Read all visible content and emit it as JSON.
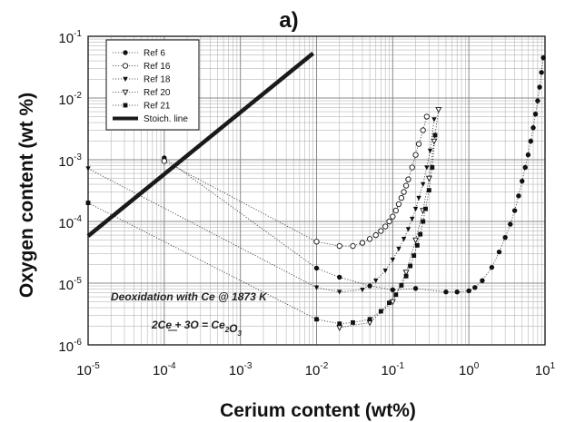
{
  "chart_data": {
    "type": "scatter",
    "title": "a)",
    "xlabel": "Cerium content (wt%)",
    "ylabel": "Oxygen content (wt %)",
    "x_scale": "log",
    "y_scale": "log",
    "xlim": [
      1e-05,
      10
    ],
    "ylim": [
      1e-06,
      0.1
    ],
    "grid": "major and minor",
    "legend_position": "top-left",
    "x_ticks": [
      {
        "base": "10",
        "exp": "-5"
      },
      {
        "base": "10",
        "exp": "-4"
      },
      {
        "base": "10",
        "exp": "-3"
      },
      {
        "base": "10",
        "exp": "-2"
      },
      {
        "base": "10",
        "exp": "-1"
      },
      {
        "base": "10",
        "exp": "0"
      },
      {
        "base": "10",
        "exp": "1"
      }
    ],
    "y_ticks": [
      {
        "base": "10",
        "exp": "-6"
      },
      {
        "base": "10",
        "exp": "-5"
      },
      {
        "base": "10",
        "exp": "-4"
      },
      {
        "base": "10",
        "exp": "-3"
      },
      {
        "base": "10",
        "exp": "-2"
      },
      {
        "base": "10",
        "exp": "-1"
      }
    ],
    "annotations": [
      {
        "id": "deox",
        "text": "Deoxidation with Ce @ 1873 K"
      },
      {
        "id": "reaction",
        "parts": [
          {
            "t": "2Ce + 3O = Ce"
          },
          {
            "t": "2",
            "sub": true
          },
          {
            "t": "O"
          },
          {
            "t": "3",
            "sub": true
          }
        ]
      }
    ],
    "series": [
      {
        "name": "Ref 6",
        "marker": "filled-circle",
        "color": "#1a1a1a",
        "x": [
          0.0001,
          0.01,
          0.02,
          0.05,
          0.1,
          0.2,
          0.5,
          0.7,
          1,
          1.2,
          1.5,
          2,
          2.5,
          3,
          3.5,
          4,
          4.5,
          5,
          5.5,
          6,
          6.5,
          7,
          7.5,
          8,
          8.5,
          9,
          9.5
        ],
        "y": [
          0.00107,
          1.75e-05,
          1.25e-05,
          9e-06,
          7.8e-06,
          8.2e-06,
          7.2e-06,
          7.2e-06,
          7.5e-06,
          8.5e-06,
          1.1e-05,
          1.8e-05,
          3.2e-05,
          5.5e-05,
          9e-05,
          0.00015,
          0.00026,
          0.00045,
          0.00075,
          0.0012,
          0.002,
          0.0033,
          0.0055,
          0.009,
          0.015,
          0.026,
          0.045
        ]
      },
      {
        "name": "Ref 16",
        "marker": "open-circle",
        "color": "#1a1a1a",
        "x": [
          0.0001,
          0.01,
          0.02,
          0.03,
          0.04,
          0.05,
          0.06,
          0.07,
          0.08,
          0.09,
          0.1,
          0.11,
          0.12,
          0.13,
          0.14,
          0.15,
          0.16,
          0.18,
          0.2,
          0.22,
          0.25,
          0.28
        ],
        "y": [
          0.00095,
          4.7e-05,
          4e-05,
          4e-05,
          4.5e-05,
          5.2e-05,
          6e-05,
          7e-05,
          8.3e-05,
          0.0001,
          0.00012,
          0.00015,
          0.00019,
          0.00024,
          0.0003,
          0.00038,
          0.00048,
          0.00075,
          0.0012,
          0.0018,
          0.003,
          0.005
        ]
      },
      {
        "name": "Ref 18",
        "marker": "filled-triangle-down",
        "color": "#1a1a1a",
        "x": [
          1e-05,
          0.01,
          0.02,
          0.04,
          0.06,
          0.08,
          0.1,
          0.12,
          0.14,
          0.16,
          0.18,
          0.2,
          0.22,
          0.25,
          0.28,
          0.31,
          0.35
        ],
        "y": [
          0.00072,
          8.5e-06,
          7.2e-06,
          7.8e-06,
          1.1e-05,
          1.6e-05,
          2.4e-05,
          3.6e-05,
          5.2e-05,
          7.5e-05,
          0.00011,
          0.00016,
          0.00024,
          0.0004,
          0.00075,
          0.0014,
          0.0045
        ]
      },
      {
        "name": "Ref 20",
        "marker": "open-triangle-down",
        "color": "#1a1a1a",
        "x": [
          0.02,
          0.05,
          0.1,
          0.15,
          0.2,
          0.25,
          0.3,
          0.35,
          0.4
        ],
        "y": [
          1.9e-06,
          2.3e-06,
          5e-06,
          1.5e-05,
          5e-05,
          0.00015,
          0.0005,
          0.002,
          0.0065
        ]
      },
      {
        "name": "Ref 21",
        "marker": "filled-square",
        "color": "#1a1a1a",
        "x": [
          1e-05,
          0.01,
          0.02,
          0.03,
          0.05,
          0.07,
          0.09,
          0.11,
          0.13,
          0.15,
          0.17,
          0.19,
          0.21,
          0.23,
          0.25,
          0.27,
          0.3,
          0.33,
          0.36
        ],
        "y": [
          0.0002,
          2.6e-06,
          2.2e-06,
          2.3e-06,
          2.6e-06,
          3.5e-06,
          4.8e-06,
          6.5e-06,
          9.2e-06,
          1.3e-05,
          1.9e-05,
          2.8e-05,
          4.1e-05,
          6.2e-05,
          0.0001,
          0.00016,
          0.00032,
          0.00075,
          0.0025
        ]
      },
      {
        "name": "Stoich. line",
        "marker": "none",
        "line": "solid-thick",
        "color": "#1a1a1a",
        "x": [
          1e-05,
          0.009
        ],
        "y": [
          5.8e-05,
          0.053
        ]
      }
    ]
  }
}
